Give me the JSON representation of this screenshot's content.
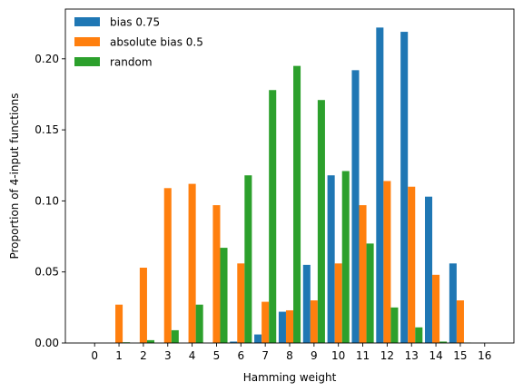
{
  "chart_data": {
    "type": "bar",
    "title": "",
    "xlabel": "Hamming weight",
    "ylabel": "Proportion of 4-input functions",
    "categories": [
      "0",
      "1",
      "2",
      "3",
      "4",
      "5",
      "6",
      "7",
      "8",
      "9",
      "10",
      "11",
      "12",
      "13",
      "14",
      "15",
      "16"
    ],
    "x": [
      0,
      1,
      2,
      3,
      4,
      5,
      6,
      7,
      8,
      9,
      10,
      11,
      12,
      13,
      14,
      15,
      16
    ],
    "ylim": [
      0,
      0.235
    ],
    "yticks": [
      0.0,
      0.05,
      0.1,
      0.15,
      0.2
    ],
    "ytick_labels": [
      "0.00",
      "0.05",
      "0.10",
      "0.15",
      "0.20"
    ],
    "grid": false,
    "legend": "top-left",
    "series": [
      {
        "name": "bias 0.75",
        "color": "#1f77b4",
        "values": [
          0,
          0,
          0,
          0,
          0,
          0,
          0.001,
          0.006,
          0.022,
          0.055,
          0.118,
          0.192,
          0.222,
          0.219,
          0.103,
          0.056,
          0
        ]
      },
      {
        "name": "absolute bias 0.5",
        "color": "#ff7f0e",
        "values": [
          0,
          0.027,
          0.053,
          0.109,
          0.112,
          0.097,
          0.056,
          0.029,
          0.023,
          0.03,
          0.056,
          0.097,
          0.114,
          0.11,
          0.048,
          0.03,
          0
        ]
      },
      {
        "name": "random",
        "color": "#2ca02c",
        "values": [
          0,
          0.0005,
          0.002,
          0.009,
          0.027,
          0.067,
          0.118,
          0.178,
          0.195,
          0.171,
          0.121,
          0.07,
          0.025,
          0.011,
          0.001,
          0.0003,
          0
        ]
      }
    ]
  }
}
